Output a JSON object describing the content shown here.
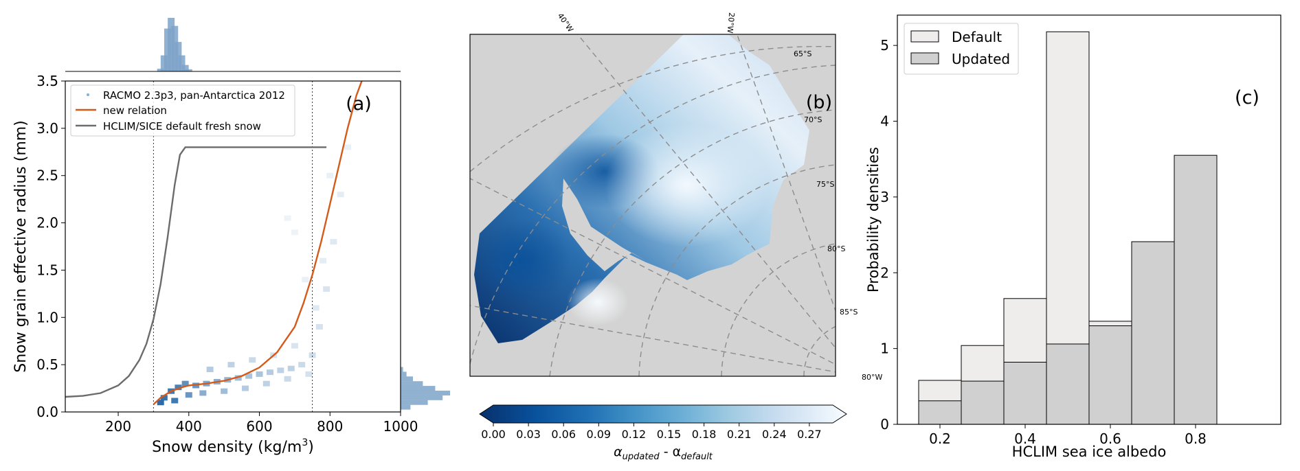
{
  "chart_data": [
    {
      "panel": "a",
      "type": "scatter",
      "panel_label": "(a)",
      "xlabel": "Snow density (kg/m",
      "xlabel_sup": "3",
      "xlabel_close": ")",
      "ylabel": "Snow grain effective radius (mm)",
      "xlim": [
        50,
        1000
      ],
      "ylim": [
        0,
        3.5
      ],
      "xticks": [
        200,
        400,
        600,
        800,
        1000
      ],
      "yticks": [
        0.0,
        0.5,
        1.0,
        1.5,
        2.0,
        2.5,
        3.0,
        3.5
      ],
      "xtick_labels": [
        "200",
        "400",
        "600",
        "800",
        "1000"
      ],
      "ytick_labels": [
        "0.0",
        "0.5",
        "1.0",
        "1.5",
        "2.0",
        "2.5",
        "3.0",
        "3.5"
      ],
      "vlines": [
        300,
        750
      ],
      "legend": {
        "placement": "top-left",
        "entries": [
          {
            "label": "RACMO 2.3p3, pan-Antarctica 2012",
            "color": "#7fb0d9",
            "marker": "point"
          },
          {
            "label": "new relation",
            "color": "#d45a1a",
            "marker": "line"
          },
          {
            "label": "HCLIM/SICE default fresh snow",
            "color": "#6b6b6b",
            "marker": "line"
          }
        ]
      },
      "series": [
        {
          "name": "new relation",
          "color": "#d45a1a",
          "x": [
            300,
            320,
            350,
            380,
            400,
            450,
            500,
            550,
            600,
            650,
            700,
            725,
            750,
            775,
            800,
            825,
            850,
            875,
            890
          ],
          "y": [
            0.08,
            0.15,
            0.22,
            0.26,
            0.28,
            0.3,
            0.33,
            0.38,
            0.47,
            0.63,
            0.9,
            1.15,
            1.45,
            1.8,
            2.2,
            2.6,
            3.0,
            3.35,
            3.5
          ]
        },
        {
          "name": "HCLIM/SICE default fresh snow",
          "color": "#6b6b6b",
          "x": [
            50,
            100,
            150,
            200,
            230,
            260,
            280,
            300,
            320,
            340,
            360,
            375,
            390,
            400,
            500,
            600,
            700,
            790
          ],
          "y": [
            0.16,
            0.17,
            0.2,
            0.28,
            0.38,
            0.55,
            0.72,
            0.98,
            1.35,
            1.85,
            2.4,
            2.72,
            2.8,
            2.8,
            2.8,
            2.8,
            2.8,
            2.8
          ]
        }
      ],
      "density_cloud": {
        "color": "#2b6ba8",
        "points": [
          [
            330,
            0.15,
            0.95
          ],
          [
            350,
            0.22,
            0.9
          ],
          [
            370,
            0.26,
            0.85
          ],
          [
            390,
            0.3,
            0.75
          ],
          [
            420,
            0.28,
            0.7
          ],
          [
            450,
            0.3,
            0.6
          ],
          [
            480,
            0.32,
            0.55
          ],
          [
            510,
            0.34,
            0.5
          ],
          [
            540,
            0.36,
            0.45
          ],
          [
            570,
            0.38,
            0.4
          ],
          [
            600,
            0.4,
            0.4
          ],
          [
            630,
            0.42,
            0.35
          ],
          [
            660,
            0.44,
            0.3
          ],
          [
            690,
            0.46,
            0.3
          ],
          [
            720,
            0.5,
            0.25
          ],
          [
            750,
            0.6,
            0.22
          ],
          [
            770,
            0.9,
            0.2
          ],
          [
            790,
            1.3,
            0.18
          ],
          [
            810,
            1.8,
            0.15
          ],
          [
            830,
            2.3,
            0.12
          ],
          [
            850,
            2.8,
            0.1
          ],
          [
            870,
            3.2,
            0.1
          ],
          [
            320,
            0.1,
            1.0
          ],
          [
            360,
            0.12,
            0.9
          ],
          [
            400,
            0.18,
            0.7
          ],
          [
            440,
            0.2,
            0.55
          ],
          [
            500,
            0.22,
            0.45
          ],
          [
            560,
            0.25,
            0.35
          ],
          [
            620,
            0.3,
            0.3
          ],
          [
            680,
            0.35,
            0.25
          ],
          [
            740,
            0.4,
            0.2
          ],
          [
            460,
            0.45,
            0.35
          ],
          [
            520,
            0.5,
            0.3
          ],
          [
            580,
            0.55,
            0.25
          ],
          [
            640,
            0.6,
            0.2
          ],
          [
            700,
            0.7,
            0.18
          ],
          [
            760,
            1.1,
            0.15
          ],
          [
            780,
            1.6,
            0.12
          ],
          [
            730,
            1.4,
            0.1
          ],
          [
            700,
            1.9,
            0.08
          ],
          [
            680,
            2.05,
            0.08
          ],
          [
            800,
            2.5,
            0.1
          ]
        ]
      },
      "top_marginal": {
        "color": "#7ea3c9",
        "x": [
          320,
          330,
          340,
          350,
          360,
          370,
          380,
          390,
          400
        ],
        "density": [
          0.05,
          0.3,
          0.8,
          1.0,
          0.85,
          0.55,
          0.3,
          0.12,
          0.04
        ]
      },
      "right_marginal": {
        "color": "#7ea3c9",
        "y": [
          0.05,
          0.1,
          0.15,
          0.2,
          0.25,
          0.3,
          0.35,
          0.4,
          0.45
        ],
        "density": [
          0.2,
          0.55,
          0.85,
          1.0,
          0.7,
          0.45,
          0.25,
          0.12,
          0.05
        ]
      }
    },
    {
      "panel": "b",
      "type": "heatmap",
      "panel_label": "(b)",
      "colorbar_label": "α",
      "colorbar_sub1": "updated",
      "colorbar_mid": " - α",
      "colorbar_sub2": "default",
      "colorbar_ticks": [
        "0.00",
        "0.03",
        "0.06",
        "0.09",
        "0.12",
        "0.15",
        "0.18",
        "0.21",
        "0.24",
        "0.27"
      ],
      "colorbar_range": [
        0.0,
        0.29
      ],
      "colormap": [
        "#08306b",
        "#08519c",
        "#2171b5",
        "#4292c6",
        "#6baed6",
        "#9ecae1",
        "#c6dbef",
        "#deebf7",
        "#f7fbff"
      ],
      "background_color": "#d3d3d3",
      "grid_labels": {
        "meridians": [
          "40°W",
          "20°W",
          "80°W"
        ],
        "parallels": [
          "65°S",
          "70°S",
          "75°S",
          "80°S",
          "85°S"
        ]
      }
    },
    {
      "panel": "c",
      "type": "bar",
      "panel_label": "(c)",
      "xlabel": "HCLIM sea ice albedo",
      "ylabel": "Probability densities",
      "xlim": [
        0.1,
        1.0
      ],
      "ylim": [
        0,
        5.4
      ],
      "xticks": [
        0.2,
        0.4,
        0.6,
        0.8
      ],
      "yticks": [
        0,
        1,
        2,
        3,
        4,
        5
      ],
      "xtick_labels": [
        "0.2",
        "0.4",
        "0.6",
        "0.8"
      ],
      "ytick_labels": [
        "0",
        "1",
        "2",
        "3",
        "4",
        "5"
      ],
      "bin_edges": [
        0.15,
        0.25,
        0.35,
        0.45,
        0.55,
        0.65,
        0.75,
        0.85,
        0.95
      ],
      "legend": {
        "placement": "top-left"
      },
      "series": [
        {
          "name": "Default",
          "color": "#efecec",
          "values": [
            0.58,
            1.04,
            1.66,
            5.18,
            1.36,
            0.21,
            0.0,
            0.0
          ]
        },
        {
          "name": "Updated",
          "color": "#d0d0d0",
          "values": [
            0.31,
            0.57,
            0.82,
            1.06,
            1.3,
            2.41,
            3.55,
            0.0
          ]
        }
      ]
    }
  ]
}
